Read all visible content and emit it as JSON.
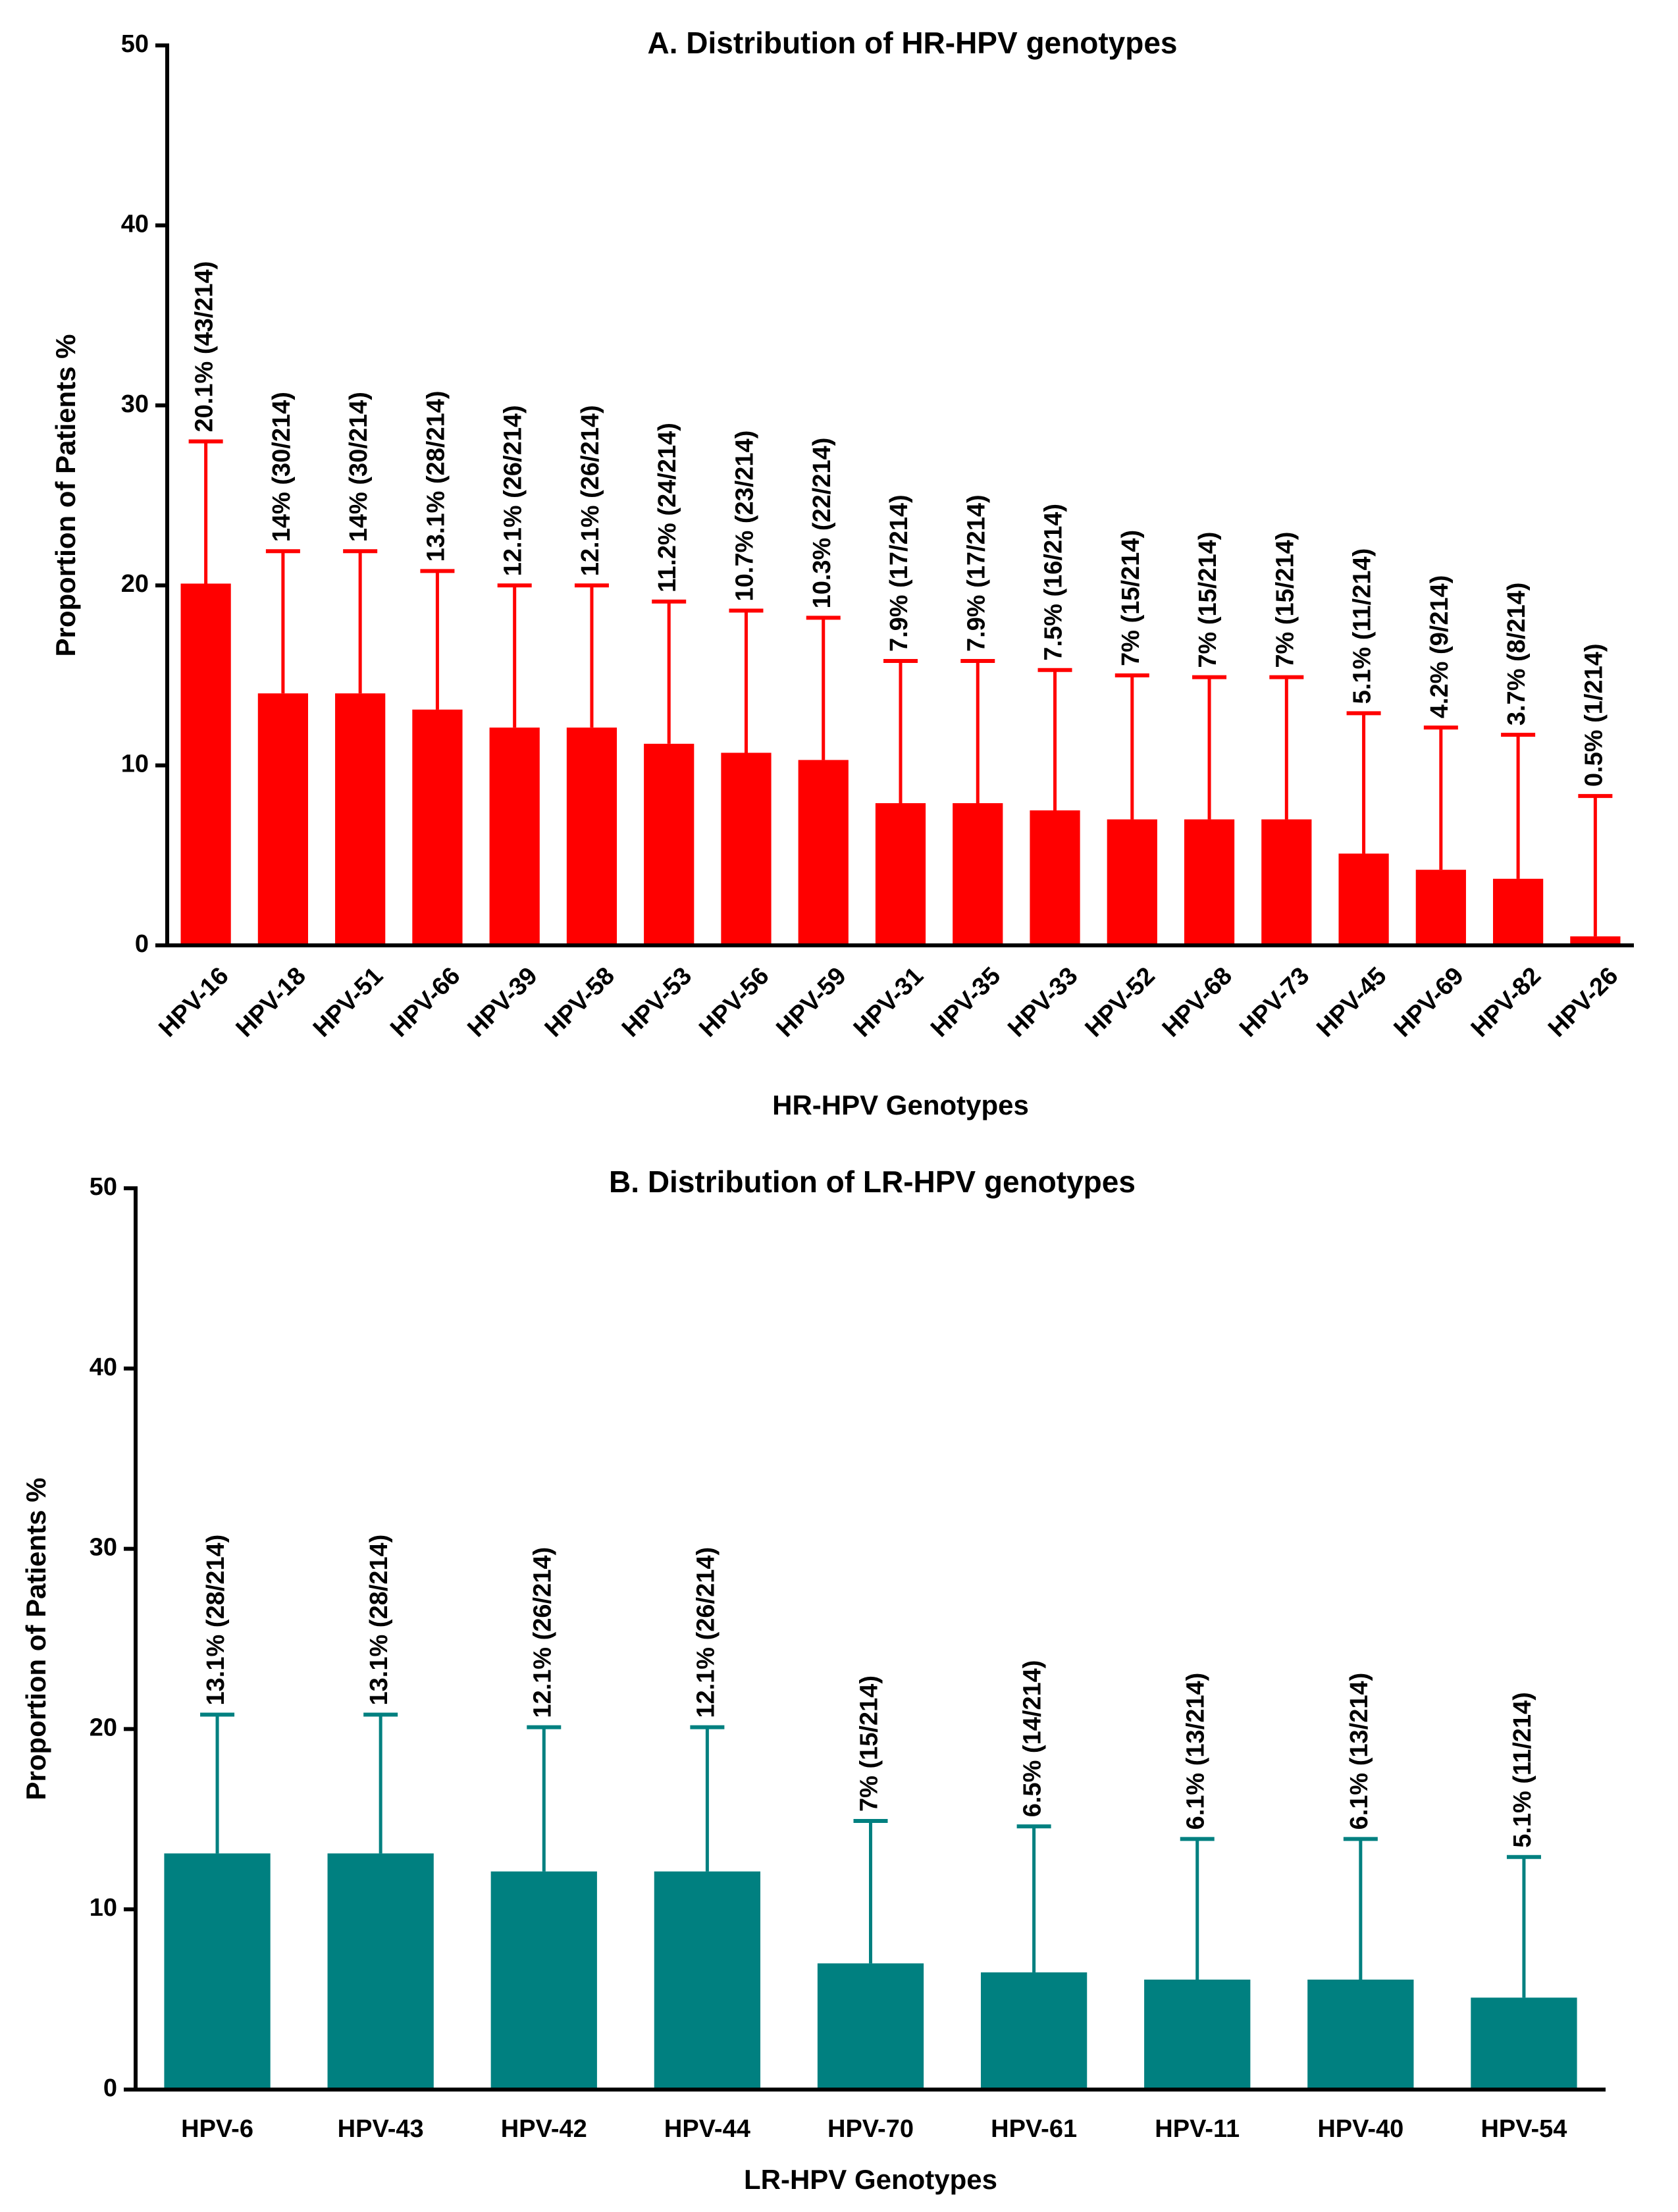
{
  "chart_data": [
    {
      "type": "bar",
      "title": "A. Distribution of HR-HPV genotypes",
      "x_label": "HR-HPV Genotypes",
      "y_label": "Proportion of Patients %",
      "categories": [
        "HPV-16",
        "HPV-18",
        "HPV-51",
        "HPV-66",
        "HPV-39",
        "HPV-58",
        "HPV-53",
        "HPV-56",
        "HPV-59",
        "HPV-31",
        "HPV-35",
        "HPV-33",
        "HPV-52",
        "HPV-68",
        "HPV-73",
        "HPV-45",
        "HPV-69",
        "HPV-82",
        "HPV-26"
      ],
      "values": [
        20.1,
        14,
        14,
        13.1,
        12.1,
        12.1,
        11.2,
        10.7,
        10.3,
        7.9,
        7.9,
        7.5,
        7,
        7,
        7,
        5.1,
        4.2,
        3.7,
        0.5
      ],
      "errors": [
        7.9,
        7.9,
        7.9,
        7.7,
        7.9,
        7.9,
        7.9,
        7.9,
        7.9,
        7.9,
        7.9,
        7.8,
        8,
        7.9,
        7.9,
        7.8,
        7.9,
        8,
        7.8
      ],
      "value_labels": [
        "20.1% (43/214)",
        "14% (30/214)",
        "14% (30/214)",
        "13.1% (28/214)",
        "12.1% (26/214)",
        "12.1% (26/214)",
        "11.2% (24/214)",
        "10.7% (23/214)",
        "10.3% (22/214)",
        "7.9% (17/214)",
        "7.9% (17/214)",
        "7.5% (16/214)",
        "7% (15/214)",
        "7% (15/214)",
        "7% (15/214)",
        "5.1% (11/214)",
        "4.2% (9/214)",
        "3.7% (8/214)",
        "0.5% (1/214)"
      ],
      "color": "#ff0000",
      "ylim": [
        0,
        50
      ],
      "yticks": [
        0,
        10,
        20,
        30,
        40,
        50
      ]
    },
    {
      "type": "bar",
      "title": "B. Distribution of LR-HPV genotypes",
      "x_label": "LR-HPV Genotypes",
      "y_label": "Proportion of Patients %",
      "categories": [
        "HPV-6",
        "HPV-43",
        "HPV-42",
        "HPV-44",
        "HPV-70",
        "HPV-61",
        "HPV-11",
        "HPV-40",
        "HPV-54"
      ],
      "values": [
        13.1,
        13.1,
        12.1,
        12.1,
        7,
        6.5,
        6.1,
        6.1,
        5.1
      ],
      "errors": [
        7.7,
        7.7,
        8,
        8,
        7.9,
        8.1,
        7.8,
        7.8,
        7.8
      ],
      "value_labels": [
        "13.1% (28/214)",
        "13.1% (28/214)",
        "12.1% (26/214)",
        "12.1% (26/214)",
        "7% (15/214)",
        "6.5% (14/214)",
        "6.1% (13/214)",
        "6.1% (13/214)",
        "5.1% (11/214)"
      ],
      "color": "#008080",
      "ylim": [
        0,
        50
      ],
      "yticks": [
        0,
        10,
        20,
        30,
        40,
        50
      ]
    }
  ]
}
